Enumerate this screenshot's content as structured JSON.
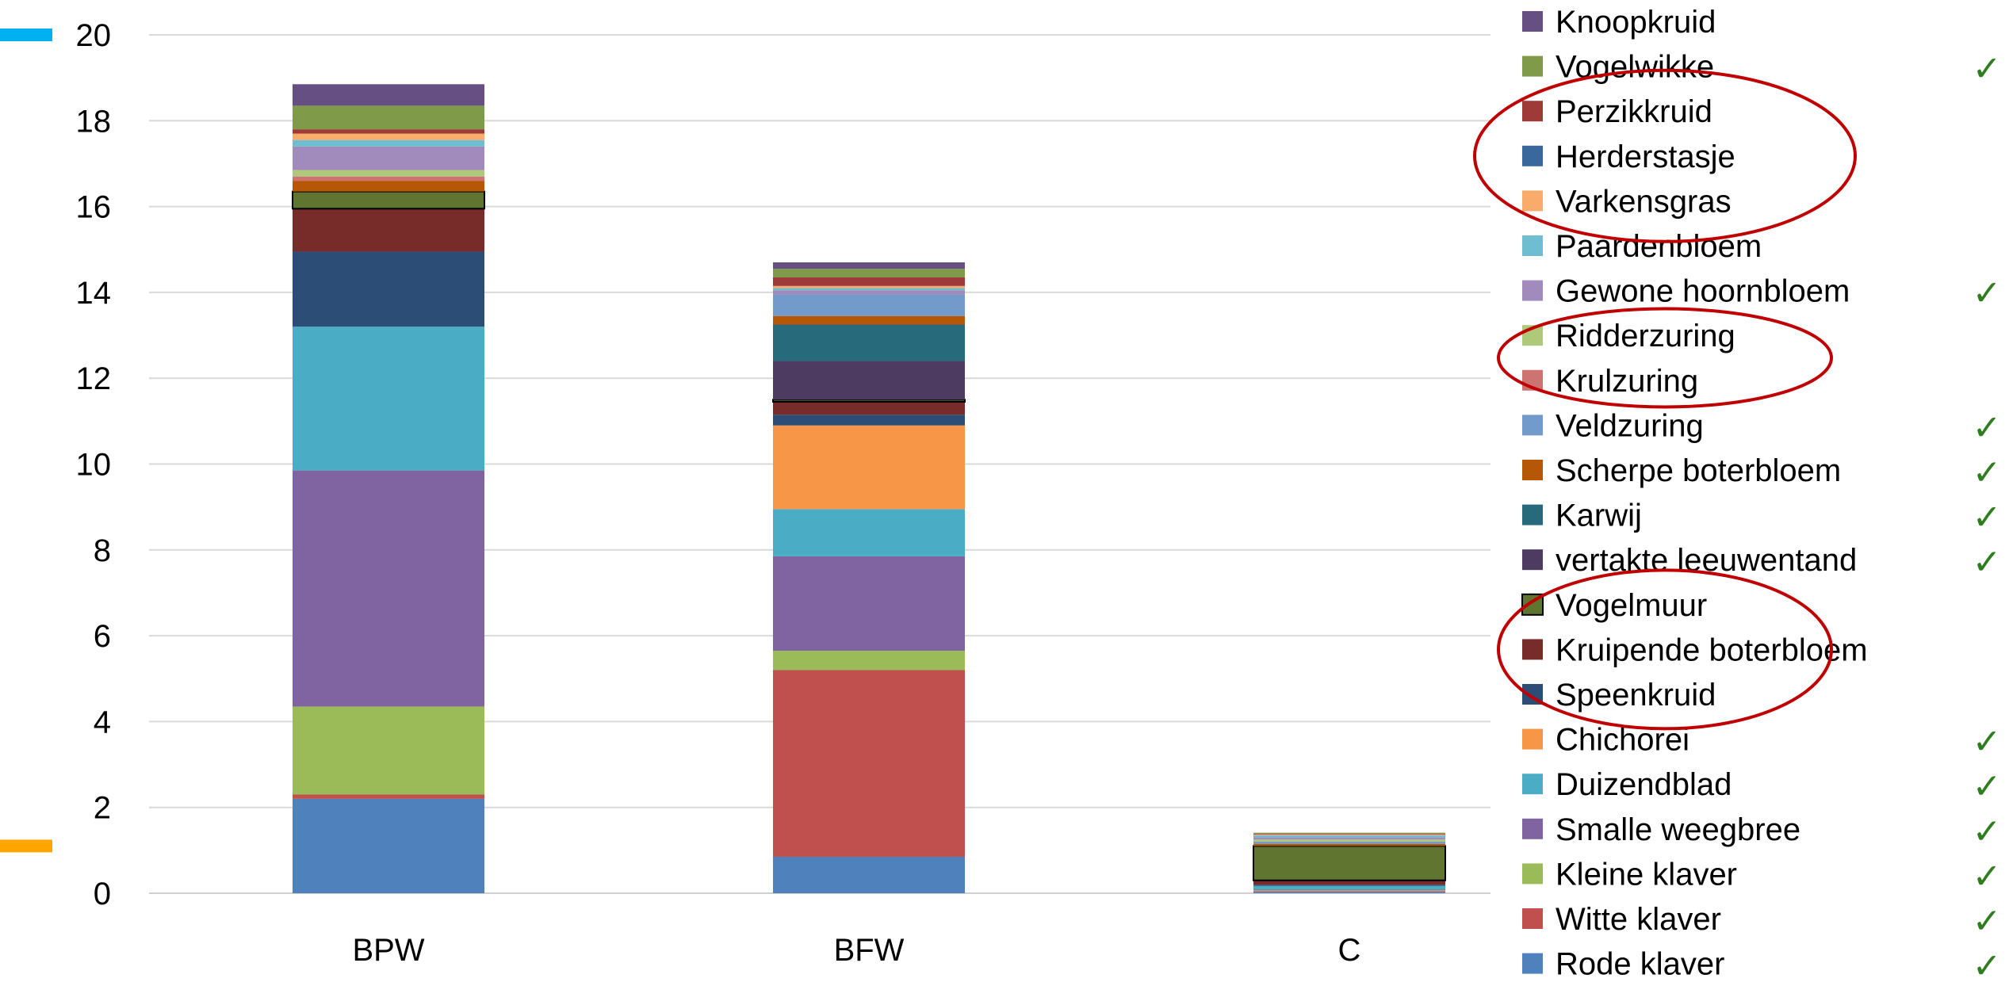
{
  "chart_data": {
    "type": "bar",
    "stacked": true,
    "title": "",
    "xlabel": "",
    "ylabel": "",
    "ylim": [
      0,
      20
    ],
    "yticks": [
      0,
      2,
      4,
      6,
      8,
      10,
      12,
      14,
      16,
      18,
      20
    ],
    "grid": true,
    "legend_position": "right",
    "categories": [
      "BPW",
      "BFW",
      "C"
    ],
    "series": [
      {
        "name": "Rode klaver",
        "color": "#4f81bd",
        "checked": true,
        "values": [
          2.2,
          0.85,
          0.03
        ]
      },
      {
        "name": "Witte klaver",
        "color": "#c0504d",
        "checked": true,
        "values": [
          0.1,
          4.35,
          0.02
        ]
      },
      {
        "name": "Kleine klaver",
        "color": "#9bbb59",
        "checked": true,
        "values": [
          2.05,
          0.45,
          0.02
        ]
      },
      {
        "name": "Smalle weegbree",
        "color": "#8064a2",
        "checked": true,
        "values": [
          5.5,
          2.2,
          0.02
        ]
      },
      {
        "name": "Duizendblad",
        "color": "#4bacc6",
        "checked": true,
        "values": [
          3.35,
          1.1,
          0.08
        ]
      },
      {
        "name": "Chichorei",
        "color": "#f79646",
        "checked": true,
        "values": [
          0.0,
          1.95,
          0.0
        ]
      },
      {
        "name": "Speenkruid",
        "color": "#2c4d75",
        "checked": false,
        "values": [
          1.75,
          0.25,
          0.03
        ]
      },
      {
        "name": "Kruipende boterbloem",
        "color": "#772c2a",
        "checked": false,
        "values": [
          1.0,
          0.3,
          0.1
        ]
      },
      {
        "name": "Vogelmuur",
        "color": "#5f7530",
        "checked": false,
        "values": [
          0.4,
          0.05,
          0.8
        ]
      },
      {
        "name": "vertakte leeuwentand",
        "color": "#4d3b62",
        "checked": true,
        "values": [
          0.0,
          0.9,
          0.0
        ]
      },
      {
        "name": "Karwij",
        "color": "#276a7c",
        "checked": true,
        "values": [
          0.0,
          0.85,
          0.0
        ]
      },
      {
        "name": "Scherpe boterbloem",
        "color": "#b65708",
        "checked": true,
        "values": [
          0.25,
          0.2,
          0.05
        ]
      },
      {
        "name": "Veldzuring",
        "color": "#729aca",
        "checked": true,
        "values": [
          0.0,
          0.5,
          0.05
        ]
      },
      {
        "name": "Krulzuring",
        "color": "#cd7371",
        "checked": false,
        "values": [
          0.1,
          0.0,
          0.0
        ]
      },
      {
        "name": "Ridderzuring",
        "color": "#afc97a",
        "checked": false,
        "values": [
          0.15,
          0.0,
          0.05
        ]
      },
      {
        "name": "Gewone hoornbloem",
        "color": "#a18bbd",
        "checked": true,
        "values": [
          0.55,
          0.1,
          0.05
        ]
      },
      {
        "name": "Paardenbloem",
        "color": "#6fbdd1",
        "checked": false,
        "values": [
          0.15,
          0.05,
          0.05
        ]
      },
      {
        "name": "Varkensgras",
        "color": "#f9ab6b",
        "checked": false,
        "values": [
          0.15,
          0.05,
          0.02
        ]
      },
      {
        "name": "Herderstasje",
        "color": "#3a679c",
        "checked": false,
        "values": [
          0.0,
          0.0,
          0.0
        ]
      },
      {
        "name": "Perzikkruid",
        "color": "#9e3a38",
        "checked": false,
        "values": [
          0.1,
          0.2,
          0.02
        ]
      },
      {
        "name": "Vogelwikke",
        "color": "#7f9a48",
        "checked": true,
        "values": [
          0.55,
          0.2,
          0.02
        ]
      },
      {
        "name": "Knoopkruid",
        "color": "#664f83",
        "checked": false,
        "values": [
          0.5,
          0.15,
          0.0
        ]
      }
    ],
    "annotations": {
      "check_symbol": "✓",
      "left_markers": [
        {
          "value": 20,
          "color": "#00b0f0"
        },
        {
          "value": 1.1,
          "color": "#ffa500"
        }
      ],
      "legend_circles": [
        {
          "from": "Perzikkruid",
          "to": "Varkensgras",
          "color": "#c00000"
        },
        {
          "from": "Ridderzuring",
          "to": "Krulzuring",
          "color": "#c00000"
        },
        {
          "from": "Vogelmuur",
          "to": "Speenkruid",
          "color": "#c00000"
        }
      ]
    }
  }
}
